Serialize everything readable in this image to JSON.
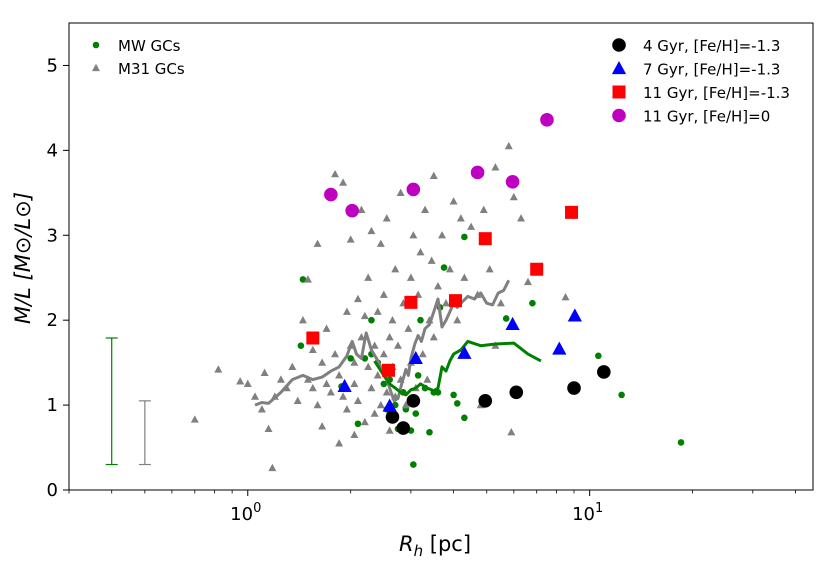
{
  "chart_data": {
    "type": "scatter",
    "xscale": "log",
    "xlim": [
      0.3,
      45
    ],
    "ylim": [
      0,
      5.5
    ],
    "xlabel_main": "R",
    "xlabel_sub": "h",
    "xlabel_unit": " [pc]",
    "ylabel": "M/L [M⊙/L⊙]",
    "x_major_ticks": [
      {
        "value": 1,
        "base": "10",
        "exp": "0"
      },
      {
        "value": 10,
        "base": "10",
        "exp": "1"
      }
    ],
    "y_ticks": [
      0,
      1,
      2,
      3,
      4,
      5
    ],
    "legend_left": [
      {
        "label": "MW GCs",
        "marker": "circle-small",
        "color": "#008000"
      },
      {
        "label": "M31 GCs",
        "marker": "triangle-small",
        "color": "#808080"
      }
    ],
    "legend_right": [
      {
        "label": "4 Gyr, [Fe/H]=-1.3",
        "marker": "circle",
        "color": "#000000"
      },
      {
        "label": "7 Gyr, [Fe/H]=-1.3",
        "marker": "triangle",
        "color": "#0000ff"
      },
      {
        "label": "11 Gyr, [Fe/H]=-1.3",
        "marker": "square",
        "color": "#ff0000"
      },
      {
        "label": "11 Gyr, [Fe/H]=0",
        "marker": "circle",
        "color": "#c000c0"
      }
    ],
    "series": [
      {
        "name": "MW GCs",
        "marker": "circle-small",
        "color": "#008000",
        "points": [
          [
            1.45,
            2.48
          ],
          [
            1.43,
            1.7
          ],
          [
            1.88,
            1.22
          ],
          [
            2.0,
            1.55
          ],
          [
            2.1,
            0.78
          ],
          [
            2.2,
            1.55
          ],
          [
            2.3,
            2.0
          ],
          [
            2.4,
            1.5
          ],
          [
            2.5,
            1.25
          ],
          [
            2.55,
            0.95
          ],
          [
            2.7,
            1.0
          ],
          [
            2.75,
            0.72
          ],
          [
            2.85,
            1.15
          ],
          [
            2.9,
            0.95
          ],
          [
            3.0,
            0.7
          ],
          [
            3.05,
            0.3
          ],
          [
            3.1,
            0.9
          ],
          [
            3.2,
            2.0
          ],
          [
            3.3,
            1.2
          ],
          [
            3.4,
            0.68
          ],
          [
            3.5,
            1.15
          ],
          [
            3.6,
            1.15
          ],
          [
            3.65,
            2.15
          ],
          [
            3.75,
            2.62
          ],
          [
            4.0,
            1.12
          ],
          [
            4.1,
            1.02
          ],
          [
            4.3,
            0.85
          ],
          [
            4.3,
            2.98
          ],
          [
            5.7,
            2.02
          ],
          [
            6.8,
            2.2
          ],
          [
            10.6,
            1.58
          ],
          [
            12.4,
            1.12
          ],
          [
            18.5,
            0.56
          ],
          [
            2.3,
            1.6
          ],
          [
            2.6,
            1.3
          ],
          [
            3.15,
            1.35
          ]
        ]
      },
      {
        "name": "M31 GCs",
        "marker": "triangle-small",
        "color": "#808080",
        "points": [
          [
            0.7,
            0.83
          ],
          [
            0.82,
            1.42
          ],
          [
            0.95,
            1.28
          ],
          [
            1.0,
            1.25
          ],
          [
            1.05,
            1.1
          ],
          [
            1.1,
            0.95
          ],
          [
            1.12,
            1.38
          ],
          [
            1.15,
            0.72
          ],
          [
            1.18,
            0.26
          ],
          [
            1.2,
            1.1
          ],
          [
            1.25,
            1.3
          ],
          [
            1.3,
            1.2
          ],
          [
            1.35,
            1.45
          ],
          [
            1.4,
            1.05
          ],
          [
            1.45,
            2.0
          ],
          [
            1.5,
            1.3
          ],
          [
            1.5,
            2.48
          ],
          [
            1.55,
            1.65
          ],
          [
            1.55,
            1.2
          ],
          [
            1.6,
            1.0
          ],
          [
            1.6,
            2.9
          ],
          [
            1.65,
            1.5
          ],
          [
            1.65,
            0.75
          ],
          [
            1.7,
            1.25
          ],
          [
            1.7,
            1.9
          ],
          [
            1.75,
            1.15
          ],
          [
            1.8,
            1.6
          ],
          [
            1.8,
            3.72
          ],
          [
            1.85,
            1.35
          ],
          [
            1.85,
            0.55
          ],
          [
            1.9,
            3.62
          ],
          [
            1.9,
            1.1
          ],
          [
            1.95,
            2.1
          ],
          [
            1.95,
            0.95
          ],
          [
            2.0,
            1.7
          ],
          [
            2.0,
            2.95
          ],
          [
            2.05,
            1.5
          ],
          [
            2.05,
            1.25
          ],
          [
            2.1,
            2.25
          ],
          [
            2.1,
            1.05
          ],
          [
            2.15,
            3.3
          ],
          [
            2.15,
            1.8
          ],
          [
            2.2,
            2.05
          ],
          [
            2.2,
            0.8
          ],
          [
            2.25,
            1.45
          ],
          [
            2.25,
            2.5
          ],
          [
            2.3,
            1.2
          ],
          [
            2.3,
            3.05
          ],
          [
            2.35,
            1.7
          ],
          [
            2.35,
            0.9
          ],
          [
            2.4,
            2.1
          ],
          [
            2.4,
            1.35
          ],
          [
            2.45,
            2.9
          ],
          [
            2.45,
            1.0
          ],
          [
            2.5,
            1.6
          ],
          [
            2.5,
            2.3
          ],
          [
            2.55,
            1.15
          ],
          [
            2.55,
            3.2
          ],
          [
            2.6,
            1.8
          ],
          [
            2.6,
            0.7
          ],
          [
            2.65,
            2.0
          ],
          [
            2.65,
            1.45
          ],
          [
            2.7,
            2.6
          ],
          [
            2.7,
            1.1
          ],
          [
            2.75,
            1.7
          ],
          [
            2.8,
            3.5
          ],
          [
            2.8,
            1.3
          ],
          [
            2.85,
            2.2
          ],
          [
            2.9,
            1.0
          ],
          [
            2.95,
            1.9
          ],
          [
            3.0,
            2.5
          ],
          [
            3.0,
            1.5
          ],
          [
            3.05,
            3.0
          ],
          [
            3.1,
            1.2
          ],
          [
            3.15,
            2.3
          ],
          [
            3.2,
            2.8
          ],
          [
            3.25,
            1.6
          ],
          [
            3.3,
            3.3
          ],
          [
            3.35,
            1.3
          ],
          [
            3.4,
            2.0
          ],
          [
            3.45,
            2.7
          ],
          [
            3.5,
            3.7
          ],
          [
            3.5,
            1.8
          ],
          [
            3.6,
            2.4
          ],
          [
            3.7,
            3.0
          ],
          [
            3.8,
            2.2
          ],
          [
            3.9,
            2.6
          ],
          [
            4.0,
            3.4
          ],
          [
            4.1,
            2.0
          ],
          [
            4.2,
            3.2
          ],
          [
            4.3,
            2.5
          ],
          [
            4.5,
            3.1
          ],
          [
            4.7,
            2.3
          ],
          [
            4.9,
            3.3
          ],
          [
            5.1,
            2.6
          ],
          [
            5.3,
            3.8
          ],
          [
            5.5,
            2.2
          ],
          [
            5.8,
            4.05
          ],
          [
            6.0,
            3.45
          ],
          [
            6.3,
            3.2
          ],
          [
            6.6,
            2.45
          ],
          [
            5.9,
            0.68
          ],
          [
            8.5,
            2.27
          ],
          [
            4.8,
            1.0
          ],
          [
            5.3,
            1.7
          ],
          [
            2.05,
            0.65
          ]
        ]
      },
      {
        "name": "4 Gyr, [Fe/H]=-1.3",
        "marker": "circle",
        "color": "#000000",
        "points": [
          [
            2.65,
            0.86
          ],
          [
            2.85,
            0.73
          ],
          [
            3.05,
            1.05
          ],
          [
            4.95,
            1.05
          ],
          [
            6.1,
            1.15
          ],
          [
            9.0,
            1.2
          ],
          [
            11.0,
            1.39
          ]
        ]
      },
      {
        "name": "7 Gyr, [Fe/H]=-1.3",
        "marker": "triangle",
        "color": "#0000ff",
        "points": [
          [
            1.92,
            1.22
          ],
          [
            2.6,
            0.99
          ],
          [
            3.1,
            1.55
          ],
          [
            4.3,
            1.61
          ],
          [
            5.95,
            1.95
          ],
          [
            8.15,
            1.66
          ],
          [
            9.05,
            2.05
          ]
        ]
      },
      {
        "name": "11 Gyr, [Fe/H]=-1.3",
        "marker": "square",
        "color": "#ff0000",
        "points": [
          [
            1.55,
            1.79
          ],
          [
            2.58,
            1.41
          ],
          [
            3.0,
            2.21
          ],
          [
            4.05,
            2.23
          ],
          [
            4.95,
            2.96
          ],
          [
            7.0,
            2.6
          ],
          [
            8.85,
            3.27
          ]
        ]
      },
      {
        "name": "11 Gyr, [Fe/H]=0",
        "marker": "circle",
        "color": "#c000c0",
        "points": [
          [
            1.75,
            3.48
          ],
          [
            2.02,
            3.29
          ],
          [
            3.05,
            3.54
          ],
          [
            4.7,
            3.74
          ],
          [
            5.95,
            3.63
          ],
          [
            7.5,
            4.36
          ]
        ]
      }
    ],
    "lines": [
      {
        "name": "M31 running median",
        "color": "#808080",
        "points": [
          [
            1.05,
            1.0
          ],
          [
            1.1,
            1.03
          ],
          [
            1.15,
            1.02
          ],
          [
            1.25,
            1.15
          ],
          [
            1.35,
            1.3
          ],
          [
            1.45,
            1.35
          ],
          [
            1.55,
            1.3
          ],
          [
            1.65,
            1.33
          ],
          [
            1.75,
            1.4
          ],
          [
            1.85,
            1.45
          ],
          [
            1.95,
            1.58
          ],
          [
            2.02,
            1.75
          ],
          [
            2.08,
            1.6
          ],
          [
            2.15,
            1.55
          ],
          [
            2.22,
            1.85
          ],
          [
            2.3,
            1.65
          ],
          [
            2.38,
            1.55
          ],
          [
            2.45,
            1.45
          ],
          [
            2.52,
            1.38
          ],
          [
            2.6,
            1.2
          ],
          [
            2.68,
            1.05
          ],
          [
            2.75,
            1.08
          ],
          [
            2.82,
            1.25
          ],
          [
            2.9,
            1.42
          ],
          [
            2.95,
            1.35
          ],
          [
            3.0,
            1.55
          ],
          [
            3.08,
            1.72
          ],
          [
            3.15,
            1.82
          ],
          [
            3.22,
            1.75
          ],
          [
            3.3,
            1.9
          ],
          [
            3.4,
            1.95
          ],
          [
            3.5,
            2.1
          ],
          [
            3.6,
            2.25
          ],
          [
            3.7,
            1.92
          ],
          [
            3.8,
            2.0
          ],
          [
            3.9,
            2.1
          ],
          [
            4.0,
            2.2
          ],
          [
            4.1,
            2.15
          ],
          [
            4.2,
            2.2
          ],
          [
            4.4,
            2.28
          ],
          [
            4.6,
            2.25
          ],
          [
            4.8,
            2.32
          ],
          [
            5.0,
            2.2
          ],
          [
            5.2,
            2.18
          ],
          [
            5.4,
            2.32
          ],
          [
            5.6,
            2.35
          ],
          [
            5.8,
            2.47
          ]
        ]
      },
      {
        "name": "MW running median",
        "color": "#008000",
        "points": [
          [
            2.35,
            1.52
          ],
          [
            2.5,
            1.35
          ],
          [
            2.6,
            1.25
          ],
          [
            2.7,
            1.2
          ],
          [
            2.8,
            1.15
          ],
          [
            2.9,
            1.12
          ],
          [
            3.0,
            1.18
          ],
          [
            3.1,
            1.2
          ],
          [
            3.2,
            1.25
          ],
          [
            3.35,
            1.2
          ],
          [
            3.5,
            1.17
          ],
          [
            3.6,
            1.2
          ],
          [
            3.7,
            1.45
          ],
          [
            3.8,
            1.4
          ],
          [
            3.9,
            1.52
          ],
          [
            4.0,
            1.6
          ],
          [
            4.2,
            1.65
          ],
          [
            4.4,
            1.75
          ],
          [
            4.8,
            1.7
          ],
          [
            5.3,
            1.72
          ],
          [
            6.0,
            1.73
          ],
          [
            6.6,
            1.6
          ],
          [
            7.2,
            1.52
          ]
        ]
      }
    ],
    "error_bars": [
      {
        "x": 0.4,
        "low": 0.3,
        "high": 1.79,
        "color": "#008000"
      },
      {
        "x": 0.5,
        "low": 0.3,
        "high": 1.05,
        "color": "#808080"
      }
    ]
  }
}
